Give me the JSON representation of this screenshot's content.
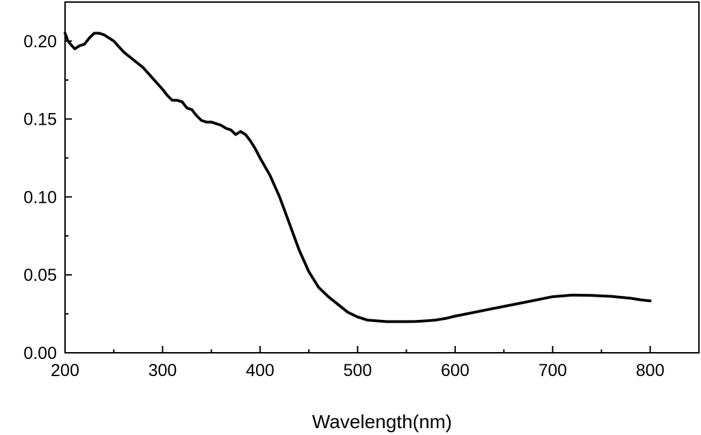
{
  "chart_data": {
    "type": "line",
    "title": "",
    "xlabel": "Wavelength(nm)",
    "ylabel": "",
    "xlim": [
      200,
      850
    ],
    "ylim": [
      0.0,
      0.225
    ],
    "x_ticks": [
      200,
      300,
      400,
      500,
      600,
      700,
      800
    ],
    "x_tick_labels": [
      "200",
      "300",
      "400",
      "500",
      "600",
      "700",
      "800"
    ],
    "y_ticks": [
      0.0,
      0.05,
      0.1,
      0.15,
      0.2
    ],
    "y_tick_labels": [
      "0.00",
      "0.05",
      "0.10",
      "0.15",
      "0.20"
    ],
    "grid": false,
    "line_color": "#000000",
    "series": [
      {
        "x": [
          200,
          203,
          207,
          210,
          215,
          220,
          225,
          230,
          235,
          240,
          250,
          260,
          270,
          280,
          290,
          300,
          305,
          310,
          315,
          320,
          325,
          330,
          335,
          340,
          345,
          350,
          355,
          360,
          365,
          370,
          375,
          380,
          385,
          390,
          395,
          400,
          410,
          420,
          430,
          440,
          450,
          460,
          470,
          480,
          490,
          500,
          510,
          520,
          530,
          540,
          550,
          560,
          570,
          580,
          590,
          600,
          620,
          640,
          660,
          680,
          700,
          720,
          740,
          760,
          780,
          790,
          800
        ],
        "y": [
          0.205,
          0.2,
          0.197,
          0.195,
          0.197,
          0.198,
          0.202,
          0.205,
          0.205,
          0.204,
          0.2,
          0.193,
          0.188,
          0.183,
          0.176,
          0.169,
          0.165,
          0.162,
          0.162,
          0.161,
          0.157,
          0.156,
          0.152,
          0.149,
          0.148,
          0.148,
          0.147,
          0.146,
          0.144,
          0.143,
          0.14,
          0.142,
          0.14,
          0.136,
          0.131,
          0.125,
          0.114,
          0.1,
          0.083,
          0.066,
          0.052,
          0.042,
          0.036,
          0.031,
          0.026,
          0.023,
          0.021,
          0.0205,
          0.02,
          0.02,
          0.02,
          0.0201,
          0.0205,
          0.021,
          0.022,
          0.0235,
          0.026,
          0.0285,
          0.031,
          0.0335,
          0.036,
          0.037,
          0.0368,
          0.0362,
          0.035,
          0.034,
          0.0333
        ]
      }
    ]
  }
}
